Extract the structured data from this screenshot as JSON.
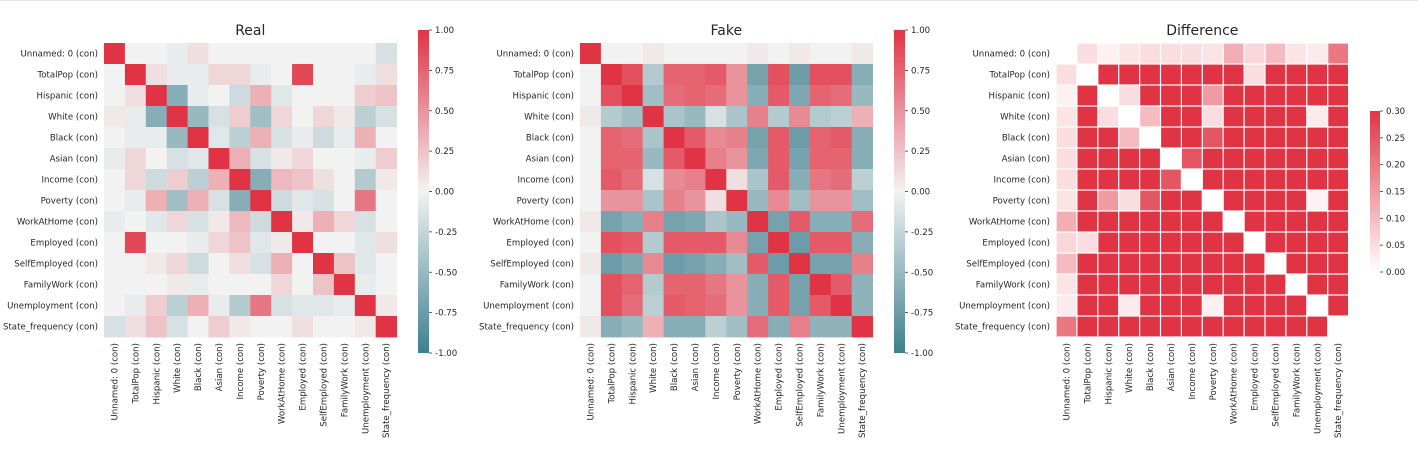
{
  "chart_data": [
    {
      "type": "heatmap",
      "title": "Real",
      "row_labels": [
        "Unnamed: 0 (con)",
        "TotalPop (con)",
        "Hispanic (con)",
        "White (con)",
        "Black (con)",
        "Asian (con)",
        "Income (con)",
        "Poverty (con)",
        "WorkAtHome (con)",
        "Employed (con)",
        "SelfEmployed (con)",
        "FamilyWork (con)",
        "Unemployment (con)",
        "State_frequency (con)"
      ],
      "col_labels": [
        "Unnamed: 0 (con)",
        "TotalPop (con)",
        "Hispanic (con)",
        "White (con)",
        "Black (con)",
        "Asian (con)",
        "Income (con)",
        "Poverty (con)",
        "WorkAtHome (con)",
        "Employed (con)",
        "SelfEmployed (con)",
        "FamilyWork (con)",
        "Unemployment (con)",
        "State_frequency (con)"
      ],
      "values": [
        [
          1.0,
          0.0,
          0.0,
          -0.05,
          0.1,
          0.0,
          0.0,
          0.0,
          0.0,
          0.0,
          0.0,
          0.0,
          0.0,
          -0.15
        ],
        [
          0.0,
          1.0,
          0.1,
          -0.05,
          -0.05,
          0.15,
          0.15,
          -0.05,
          0.0,
          0.9,
          0.0,
          0.0,
          -0.05,
          0.1
        ],
        [
          0.0,
          0.1,
          1.0,
          -0.6,
          -0.05,
          0.0,
          -0.2,
          0.35,
          -0.1,
          0.0,
          0.0,
          0.0,
          0.2,
          0.25
        ],
        [
          0.05,
          -0.05,
          -0.6,
          1.0,
          -0.5,
          -0.15,
          0.2,
          -0.45,
          0.15,
          0.0,
          0.15,
          0.05,
          -0.3,
          -0.15
        ],
        [
          0.0,
          -0.05,
          -0.05,
          -0.5,
          1.0,
          -0.1,
          -0.3,
          0.35,
          -0.15,
          -0.05,
          -0.2,
          -0.05,
          0.35,
          0.0
        ],
        [
          -0.05,
          0.15,
          0.0,
          -0.15,
          -0.1,
          1.0,
          0.35,
          -0.15,
          0.05,
          0.15,
          0.0,
          0.0,
          -0.05,
          0.2
        ],
        [
          0.0,
          0.15,
          -0.2,
          0.2,
          -0.3,
          0.35,
          1.0,
          -0.6,
          0.3,
          0.25,
          0.1,
          0.0,
          -0.35,
          0.05
        ],
        [
          0.0,
          -0.05,
          0.35,
          -0.45,
          0.35,
          -0.15,
          -0.6,
          1.0,
          -0.2,
          -0.1,
          -0.15,
          0.0,
          0.65,
          0.0
        ],
        [
          -0.05,
          0.0,
          -0.1,
          0.15,
          -0.15,
          0.05,
          0.3,
          -0.2,
          1.0,
          0.05,
          0.35,
          0.15,
          -0.15,
          0.0
        ],
        [
          0.0,
          0.9,
          0.0,
          0.0,
          -0.05,
          0.15,
          0.25,
          -0.1,
          0.05,
          1.0,
          0.0,
          0.0,
          -0.1,
          0.1
        ],
        [
          0.0,
          0.0,
          0.05,
          0.15,
          -0.2,
          0.0,
          0.1,
          -0.15,
          0.35,
          0.0,
          1.0,
          0.25,
          -0.1,
          0.0
        ],
        [
          0.0,
          0.0,
          0.0,
          0.05,
          -0.05,
          0.0,
          0.0,
          0.0,
          0.15,
          0.0,
          0.25,
          1.0,
          -0.05,
          0.0
        ],
        [
          0.0,
          -0.05,
          0.2,
          -0.3,
          0.35,
          -0.05,
          -0.35,
          0.65,
          -0.15,
          -0.1,
          -0.1,
          -0.05,
          1.0,
          0.05
        ],
        [
          -0.15,
          0.1,
          0.25,
          -0.15,
          0.0,
          0.2,
          0.05,
          0.0,
          0.0,
          0.1,
          0.0,
          0.0,
          0.05,
          1.0
        ]
      ],
      "colorbar": {
        "min": -1.0,
        "max": 1.0,
        "ticks": [
          "-1.00",
          "-0.75",
          "-0.50",
          "-0.25",
          "0.00",
          "0.25",
          "0.50",
          "0.75",
          "1.00"
        ]
      }
    },
    {
      "type": "heatmap",
      "title": "Fake",
      "row_labels": [
        "Unnamed: 0 (con)",
        "TotalPop (con)",
        "Hispanic (con)",
        "White (con)",
        "Black (con)",
        "Asian (con)",
        "Income (con)",
        "Poverty (con)",
        "WorkAtHome (con)",
        "Employed (con)",
        "SelfEmployed (con)",
        "FamilyWork (con)",
        "Unemployment (con)",
        "State_frequency (con)"
      ],
      "col_labels": [
        "Unnamed: 0 (con)",
        "TotalPop (con)",
        "Hispanic (con)",
        "White (con)",
        "Black (con)",
        "Asian (con)",
        "Income (con)",
        "Poverty (con)",
        "WorkAtHome (con)",
        "Employed (con)",
        "SelfEmployed (con)",
        "FamilyWork (con)",
        "Unemployment (con)",
        "State_frequency (con)"
      ],
      "values": [
        [
          1.0,
          0.0,
          0.0,
          0.05,
          0.0,
          0.0,
          0.0,
          0.0,
          0.05,
          0.0,
          0.05,
          0.0,
          0.0,
          0.05
        ],
        [
          0.0,
          1.0,
          0.85,
          -0.35,
          0.75,
          0.75,
          0.8,
          0.5,
          -0.7,
          0.85,
          -0.75,
          0.85,
          0.85,
          -0.6
        ],
        [
          0.0,
          0.85,
          1.0,
          -0.45,
          0.7,
          0.75,
          0.7,
          0.5,
          -0.6,
          0.8,
          -0.65,
          0.75,
          0.7,
          -0.5
        ],
        [
          0.05,
          -0.35,
          -0.45,
          1.0,
          -0.4,
          -0.5,
          -0.15,
          -0.4,
          0.6,
          -0.35,
          0.55,
          -0.35,
          -0.3,
          0.35
        ],
        [
          0.0,
          0.75,
          0.7,
          -0.4,
          1.0,
          0.8,
          0.55,
          0.6,
          -0.7,
          0.8,
          -0.75,
          0.75,
          0.8,
          -0.6
        ],
        [
          0.0,
          0.75,
          0.75,
          -0.5,
          0.8,
          1.0,
          0.6,
          0.5,
          -0.65,
          0.8,
          -0.7,
          0.75,
          0.75,
          -0.6
        ],
        [
          0.0,
          0.8,
          0.7,
          -0.15,
          0.55,
          0.6,
          1.0,
          0.1,
          -0.4,
          0.8,
          -0.6,
          0.65,
          0.7,
          -0.3
        ],
        [
          0.0,
          0.5,
          0.5,
          -0.4,
          0.6,
          0.5,
          0.1,
          1.0,
          -0.5,
          0.55,
          -0.45,
          0.5,
          0.5,
          -0.45
        ],
        [
          0.05,
          -0.7,
          -0.6,
          0.6,
          -0.7,
          -0.65,
          -0.4,
          -0.5,
          1.0,
          -0.7,
          0.8,
          -0.6,
          -0.6,
          0.7
        ],
        [
          0.0,
          0.85,
          0.8,
          -0.35,
          0.8,
          0.8,
          0.8,
          0.55,
          -0.7,
          1.0,
          -0.75,
          0.8,
          0.8,
          -0.6
        ],
        [
          0.05,
          -0.75,
          -0.65,
          0.55,
          -0.75,
          -0.7,
          -0.6,
          -0.45,
          0.8,
          -0.75,
          1.0,
          -0.7,
          -0.7,
          0.6
        ],
        [
          0.0,
          0.85,
          0.75,
          -0.35,
          0.75,
          0.75,
          0.65,
          0.5,
          -0.6,
          0.8,
          -0.7,
          1.0,
          0.8,
          -0.55
        ],
        [
          0.0,
          0.85,
          0.7,
          -0.3,
          0.8,
          0.75,
          0.7,
          0.5,
          -0.6,
          0.8,
          -0.7,
          0.8,
          1.0,
          -0.55
        ],
        [
          0.05,
          -0.6,
          -0.5,
          0.35,
          -0.6,
          -0.6,
          -0.3,
          -0.45,
          0.7,
          -0.6,
          0.6,
          -0.55,
          -0.55,
          1.0
        ]
      ],
      "colorbar": {
        "min": -1.0,
        "max": 1.0,
        "ticks": [
          "-1.00",
          "-0.75",
          "-0.50",
          "-0.25",
          "0.00",
          "0.25",
          "0.50",
          "0.75",
          "1.00"
        ]
      }
    },
    {
      "type": "heatmap",
      "title": "Difference",
      "row_labels": [
        "Unnamed: 0 (con)",
        "TotalPop (con)",
        "Hispanic (con)",
        "White (con)",
        "Black (con)",
        "Asian (con)",
        "Income (con)",
        "Poverty (con)",
        "WorkAtHome (con)",
        "Employed (con)",
        "SelfEmployed (con)",
        "FamilyWork (con)",
        "Unemployment (con)",
        "State_frequency (con)"
      ],
      "col_labels": [
        "Unnamed: 0 (con)",
        "TotalPop (con)",
        "Hispanic (con)",
        "White (con)",
        "Black (con)",
        "Asian (con)",
        "Income (con)",
        "Poverty (con)",
        "WorkAtHome (con)",
        "Employed (con)",
        "SelfEmployed (con)",
        "FamilyWork (con)",
        "Unemployment (con)",
        "State_frequency (con)"
      ],
      "values": [
        [
          0.0,
          0.05,
          0.02,
          0.04,
          0.05,
          0.05,
          0.05,
          0.04,
          0.12,
          0.06,
          0.1,
          0.04,
          0.03,
          0.2
        ],
        [
          0.05,
          0.0,
          0.3,
          0.3,
          0.3,
          0.3,
          0.3,
          0.3,
          0.3,
          0.05,
          0.3,
          0.3,
          0.3,
          0.3
        ],
        [
          0.02,
          0.3,
          0.0,
          0.05,
          0.3,
          0.3,
          0.3,
          0.15,
          0.3,
          0.3,
          0.3,
          0.3,
          0.3,
          0.3
        ],
        [
          0.04,
          0.3,
          0.05,
          0.0,
          0.1,
          0.3,
          0.3,
          0.05,
          0.3,
          0.3,
          0.3,
          0.3,
          0.03,
          0.3
        ],
        [
          0.05,
          0.3,
          0.3,
          0.1,
          0.0,
          0.3,
          0.3,
          0.25,
          0.3,
          0.3,
          0.3,
          0.3,
          0.3,
          0.3
        ],
        [
          0.05,
          0.3,
          0.3,
          0.3,
          0.3,
          0.0,
          0.25,
          0.3,
          0.3,
          0.3,
          0.3,
          0.3,
          0.3,
          0.3
        ],
        [
          0.05,
          0.3,
          0.3,
          0.3,
          0.3,
          0.25,
          0.0,
          0.3,
          0.3,
          0.3,
          0.3,
          0.3,
          0.3,
          0.3
        ],
        [
          0.04,
          0.3,
          0.15,
          0.05,
          0.25,
          0.3,
          0.3,
          0.0,
          0.3,
          0.3,
          0.3,
          0.3,
          0.02,
          0.3
        ],
        [
          0.12,
          0.3,
          0.3,
          0.3,
          0.3,
          0.3,
          0.3,
          0.3,
          0.0,
          0.3,
          0.3,
          0.3,
          0.3,
          0.3
        ],
        [
          0.06,
          0.05,
          0.3,
          0.3,
          0.3,
          0.3,
          0.3,
          0.3,
          0.3,
          0.0,
          0.3,
          0.3,
          0.3,
          0.3
        ],
        [
          0.1,
          0.3,
          0.3,
          0.3,
          0.3,
          0.3,
          0.3,
          0.3,
          0.3,
          0.3,
          0.0,
          0.3,
          0.3,
          0.3
        ],
        [
          0.04,
          0.3,
          0.3,
          0.3,
          0.3,
          0.3,
          0.3,
          0.3,
          0.3,
          0.3,
          0.3,
          0.0,
          0.3,
          0.3
        ],
        [
          0.03,
          0.3,
          0.3,
          0.03,
          0.3,
          0.3,
          0.3,
          0.02,
          0.3,
          0.3,
          0.3,
          0.3,
          0.0,
          0.3
        ],
        [
          0.2,
          0.3,
          0.3,
          0.3,
          0.3,
          0.3,
          0.3,
          0.3,
          0.3,
          0.3,
          0.3,
          0.3,
          0.3,
          0.0
        ]
      ],
      "colorbar": {
        "min": 0.0,
        "max": 0.3,
        "ticks": [
          "0.00",
          "0.05",
          "0.10",
          "0.15",
          "0.20",
          "0.25",
          "0.30"
        ]
      }
    }
  ],
  "colors": {
    "negative": "#3f7f8e",
    "center": "#f2f2f2",
    "positive": "#e03445"
  }
}
